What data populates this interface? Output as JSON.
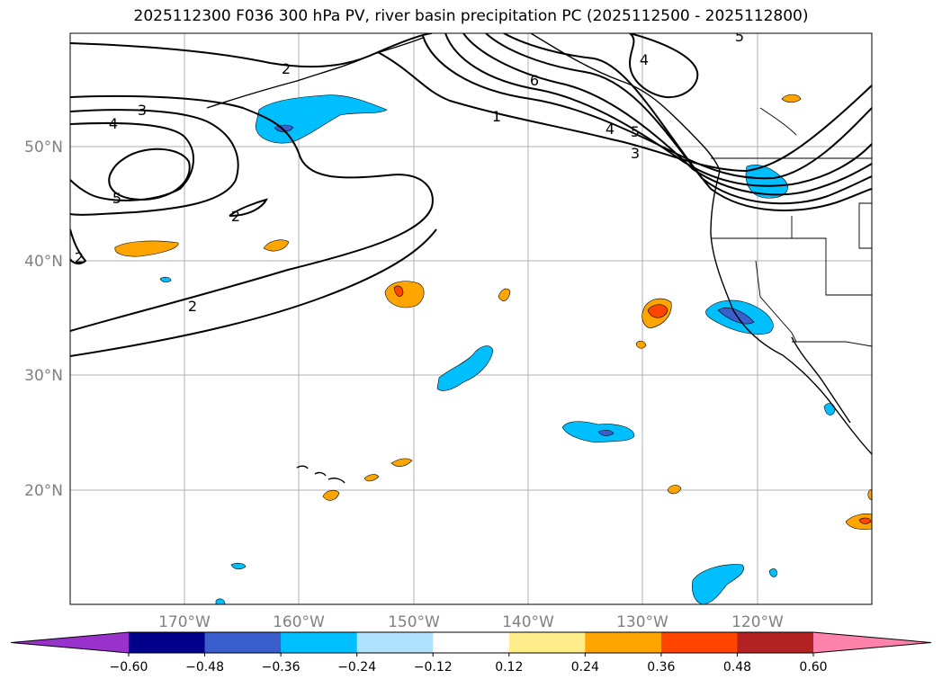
{
  "title": "2025112300 F036 300 hPa PV, river basin precipitation PC (2025112500 - 2025112800)",
  "lon_labels": [
    "170°W",
    "160°W",
    "150°W",
    "140°W",
    "130°W",
    "120°W"
  ],
  "lat_labels": [
    "50°N",
    "40°N",
    "30°N",
    "20°N"
  ],
  "contour_labels": [
    "2",
    "3",
    "4",
    "5",
    "2",
    "2",
    "2",
    "1",
    "6",
    "4",
    "5",
    "3",
    "5",
    "4"
  ],
  "colorbar": {
    "ticks": [
      "−0.60",
      "−0.48",
      "−0.36",
      "−0.24",
      "−0.12",
      "0.12",
      "0.24",
      "0.36",
      "0.48",
      "0.60"
    ],
    "colors": [
      "#9932cc",
      "#00008b",
      "#3a5fcd",
      "#00bfff",
      "#b0e2ff",
      "#ffffff",
      "#ffec8b",
      "#ffa500",
      "#ff4500",
      "#b22222",
      "#ff82ab"
    ]
  },
  "colors": {
    "grid": "#b0b0b0",
    "contour": "#000000",
    "gridlabel": "#808080"
  }
}
